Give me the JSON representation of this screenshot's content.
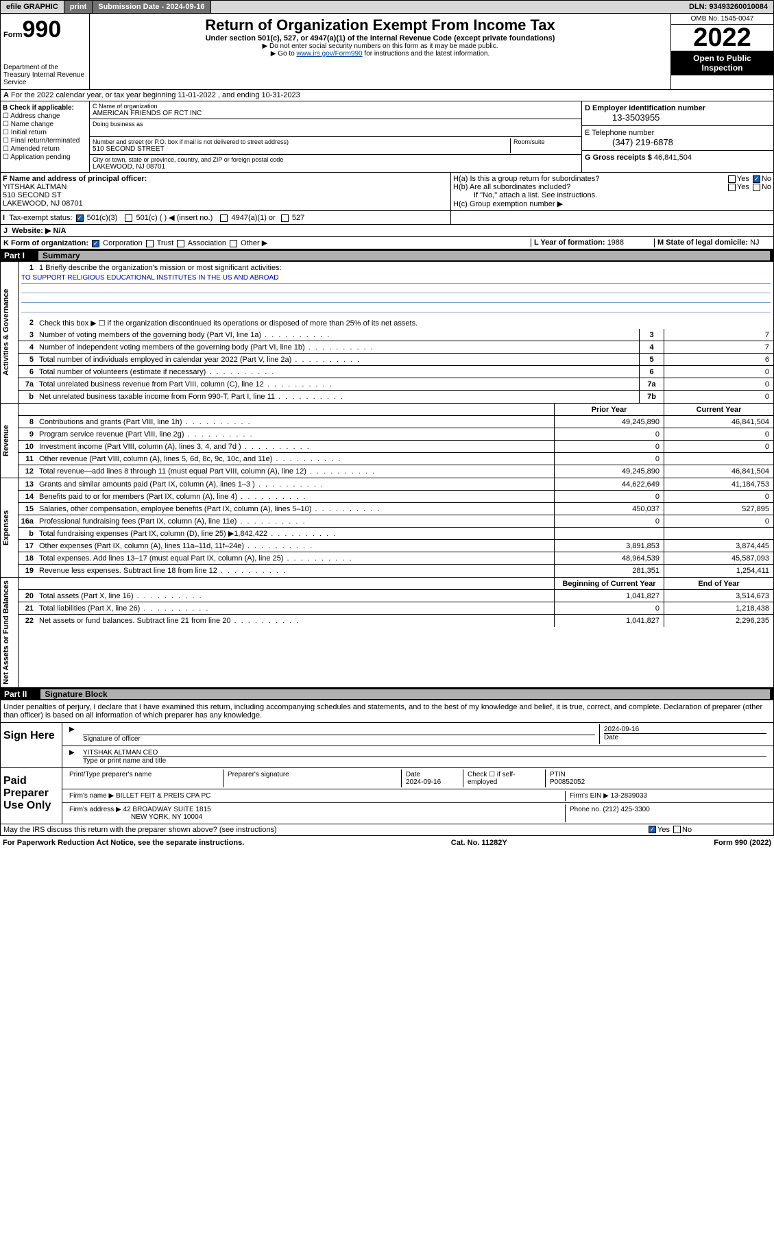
{
  "topbar": {
    "efile": "efile GRAPHIC",
    "print": "print",
    "sub_label": "Submission Date - ",
    "sub_date": "2024-09-16",
    "dln_label": "DLN: ",
    "dln": "93493260010084"
  },
  "header": {
    "form_word": "Form",
    "form_num": "990",
    "dept": "Department of the Treasury Internal Revenue Service",
    "title": "Return of Organization Exempt From Income Tax",
    "subtitle": "Under section 501(c), 527, or 4947(a)(1) of the Internal Revenue Code (except private foundations)",
    "note1": "▶ Do not enter social security numbers on this form as it may be made public.",
    "note2_pre": "▶ Go to ",
    "note2_link": "www.irs.gov/Form990",
    "note2_post": " for instructions and the latest information.",
    "omb": "OMB No. 1545-0047",
    "year": "2022",
    "open": "Open to Public Inspection"
  },
  "line_a": "For the 2022 calendar year, or tax year beginning 11-01-2022   , and ending 10-31-2023",
  "col_b": {
    "hdr": "B Check if applicable:",
    "items": [
      "Address change",
      "Name change",
      "Initial return",
      "Final return/terminated",
      "Amended return",
      "Application pending"
    ]
  },
  "col_c": {
    "name_lbl": "C Name of organization",
    "name": "AMERICAN FRIENDS OF RCT INC",
    "dba_lbl": "Doing business as",
    "street_lbl": "Number and street (or P.O. box if mail is not delivered to street address)",
    "room_lbl": "Room/suite",
    "street": "510 SECOND STREET",
    "city_lbl": "City or town, state or province, country, and ZIP or foreign postal code",
    "city": "LAKEWOOD, NJ  08701"
  },
  "col_d": {
    "d_lbl": "D Employer identification number",
    "d_val": "13-3503955",
    "e_lbl": "E Telephone number",
    "e_val": "(347) 219-6878",
    "g_lbl": "G Gross receipts $ ",
    "g_val": "46,841,504"
  },
  "sec_f": {
    "lbl": "F Name and address of principal officer:",
    "name": "YITSHAK ALTMAN",
    "street": "510 SECOND ST",
    "city": "LAKEWOOD, NJ  08701"
  },
  "sec_h": {
    "ha": "H(a)  Is this a group return for subordinates?",
    "hb": "H(b)  Are all subordinates included?",
    "hb_note": "If \"No,\" attach a list. See instructions.",
    "hc": "H(c)  Group exemption number ▶"
  },
  "line_i": "Tax-exempt status:",
  "line_i_opts": [
    "501(c)(3)",
    "501(c) (  ) ◀ (insert no.)",
    "4947(a)(1) or",
    "527"
  ],
  "line_j": "Website: ▶ N/A",
  "line_k": "K Form of organization:",
  "line_k_opts": [
    "Corporation",
    "Trust",
    "Association",
    "Other ▶"
  ],
  "line_l_lbl": "L Year of formation: ",
  "line_l_val": "1988",
  "line_m_lbl": "M State of legal domicile: ",
  "line_m_val": "NJ",
  "part1": {
    "num": "Part I",
    "title": "Summary"
  },
  "mission_lbl": "1  Briefly describe the organization's mission or most significant activities:",
  "mission": "TO SUPPORT RELIGIOUS EDUCATIONAL INSTITUTES IN THE US AND ABROAD",
  "line2": "Check this box ▶ ☐  if the organization discontinued its operations or disposed of more than 25% of its net assets.",
  "governance": [
    {
      "n": "3",
      "t": "Number of voting members of the governing body (Part VI, line 1a)",
      "b": "3",
      "v": "7"
    },
    {
      "n": "4",
      "t": "Number of independent voting members of the governing body (Part VI, line 1b)",
      "b": "4",
      "v": "7"
    },
    {
      "n": "5",
      "t": "Total number of individuals employed in calendar year 2022 (Part V, line 2a)",
      "b": "5",
      "v": "6"
    },
    {
      "n": "6",
      "t": "Total number of volunteers (estimate if necessary)",
      "b": "6",
      "v": "0"
    },
    {
      "n": "7a",
      "t": "Total unrelated business revenue from Part VIII, column (C), line 12",
      "b": "7a",
      "v": "0"
    },
    {
      "n": "b",
      "t": "Net unrelated business taxable income from Form 990-T, Part I, line 11",
      "b": "7b",
      "v": "0"
    }
  ],
  "col_hdrs": {
    "prior": "Prior Year",
    "current": "Current Year"
  },
  "revenue": [
    {
      "n": "8",
      "t": "Contributions and grants (Part VIII, line 1h)",
      "p": "49,245,890",
      "c": "46,841,504"
    },
    {
      "n": "9",
      "t": "Program service revenue (Part VIII, line 2g)",
      "p": "0",
      "c": "0"
    },
    {
      "n": "10",
      "t": "Investment income (Part VIII, column (A), lines 3, 4, and 7d )",
      "p": "0",
      "c": "0"
    },
    {
      "n": "11",
      "t": "Other revenue (Part VIII, column (A), lines 5, 6d, 8c, 9c, 10c, and 11e)",
      "p": "0",
      "c": ""
    },
    {
      "n": "12",
      "t": "Total revenue—add lines 8 through 11 (must equal Part VIII, column (A), line 12)",
      "p": "49,245,890",
      "c": "46,841,504"
    }
  ],
  "expenses": [
    {
      "n": "13",
      "t": "Grants and similar amounts paid (Part IX, column (A), lines 1–3 )",
      "p": "44,622,649",
      "c": "41,184,753"
    },
    {
      "n": "14",
      "t": "Benefits paid to or for members (Part IX, column (A), line 4)",
      "p": "0",
      "c": "0"
    },
    {
      "n": "15",
      "t": "Salaries, other compensation, employee benefits (Part IX, column (A), lines 5–10)",
      "p": "450,037",
      "c": "527,895"
    },
    {
      "n": "16a",
      "t": "Professional fundraising fees (Part IX, column (A), line 11e)",
      "p": "0",
      "c": "0"
    },
    {
      "n": "b",
      "t": "Total fundraising expenses (Part IX, column (D), line 25) ▶1,842,422",
      "p": "",
      "c": ""
    },
    {
      "n": "17",
      "t": "Other expenses (Part IX, column (A), lines 11a–11d, 11f–24e)",
      "p": "3,891,853",
      "c": "3,874,445"
    },
    {
      "n": "18",
      "t": "Total expenses. Add lines 13–17 (must equal Part IX, column (A), line 25)",
      "p": "48,964,539",
      "c": "45,587,093"
    },
    {
      "n": "19",
      "t": "Revenue less expenses. Subtract line 18 from line 12",
      "p": "281,351",
      "c": "1,254,411"
    }
  ],
  "col_hdrs2": {
    "beg": "Beginning of Current Year",
    "end": "End of Year"
  },
  "netassets": [
    {
      "n": "20",
      "t": "Total assets (Part X, line 16)",
      "p": "1,041,827",
      "c": "3,514,673"
    },
    {
      "n": "21",
      "t": "Total liabilities (Part X, line 26)",
      "p": "0",
      "c": "1,218,438"
    },
    {
      "n": "22",
      "t": "Net assets or fund balances. Subtract line 21 from line 20",
      "p": "1,041,827",
      "c": "2,296,235"
    }
  ],
  "part2": {
    "num": "Part II",
    "title": "Signature Block"
  },
  "declaration": "Under penalties of perjury, I declare that I have examined this return, including accompanying schedules and statements, and to the best of my knowledge and belief, it is true, correct, and complete. Declaration of preparer (other than officer) is based on all information of which preparer has any knowledge.",
  "sign_here": "Sign Here",
  "sig": {
    "date": "2024-09-16",
    "officer_lbl": "Signature of officer",
    "date_lbl": "Date",
    "name": "YITSHAK ALTMAN  CEO",
    "name_lbl": "Type or print name and title"
  },
  "paid": "Paid Preparer Use Only",
  "prep": {
    "h1": "Print/Type preparer's name",
    "h2": "Preparer's signature",
    "h3_lbl": "Date",
    "h3": "2024-09-16",
    "h4": "Check ☐ if self-employed",
    "h5_lbl": "PTIN",
    "h5": "P00852052",
    "firm_lbl": "Firm's name    ▶ ",
    "firm": "BILLET FEIT & PREIS CPA PC",
    "ein_lbl": "Firm's EIN ▶ ",
    "ein": "13-2839033",
    "addr_lbl": "Firm's address ▶ ",
    "addr1": "42 BROADWAY SUITE 1815",
    "addr2": "NEW YORK, NY  10004",
    "phone_lbl": "Phone no. ",
    "phone": "(212) 425-3300"
  },
  "discuss": "May the IRS discuss this return with the preparer shown above? (see instructions)",
  "yes": "Yes",
  "no": "No",
  "footer": {
    "l": "For Paperwork Reduction Act Notice, see the separate instructions.",
    "m": "Cat. No. 11282Y",
    "r": "Form 990 (2022)"
  },
  "vtabs": {
    "gov": "Activities & Governance",
    "rev": "Revenue",
    "exp": "Expenses",
    "net": "Net Assets or Fund Balances"
  }
}
